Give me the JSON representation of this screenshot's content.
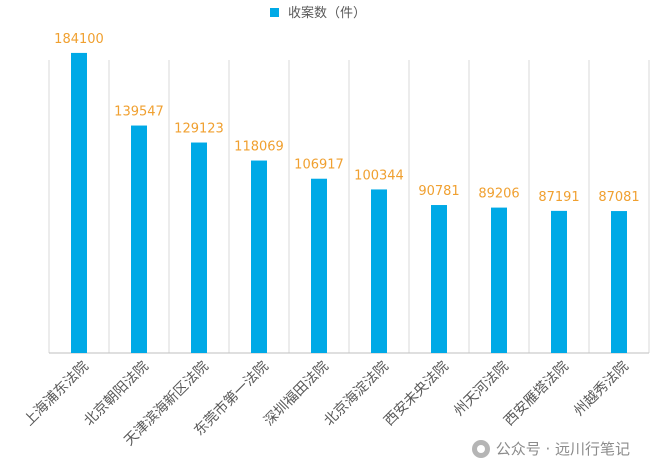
{
  "chart_data": {
    "type": "bar",
    "categories": [
      "上海浦东法院",
      "北京朝阳法院",
      "天津滨海新区法院",
      "东莞市第一法院",
      "深圳福田法院",
      "北京海淀法院",
      "西安未央法院",
      "州天河法院",
      "西安雁塔法院",
      "州越秀法院"
    ],
    "series": [
      {
        "name": "收案数（件）",
        "values": [
          184100,
          139547,
          129123,
          118069,
          106917,
          100344,
          90781,
          89206,
          87191,
          87081
        ]
      }
    ],
    "value_labels": [
      "184100",
      "139547",
      "129123",
      "118069",
      "106917",
      "100344",
      "90781",
      "89206",
      "87191",
      "87081"
    ],
    "ylim": [
      0,
      200000
    ],
    "grid": "vertical",
    "legend": "top-center",
    "colors": {
      "bar": "#00a9e6",
      "label": "#f0a030",
      "grid": "#d9d9d9",
      "axis": "#bfbfbf"
    }
  },
  "watermark": {
    "text": "公众号 · 远川行笔记",
    "icon": "wechat-icon"
  }
}
